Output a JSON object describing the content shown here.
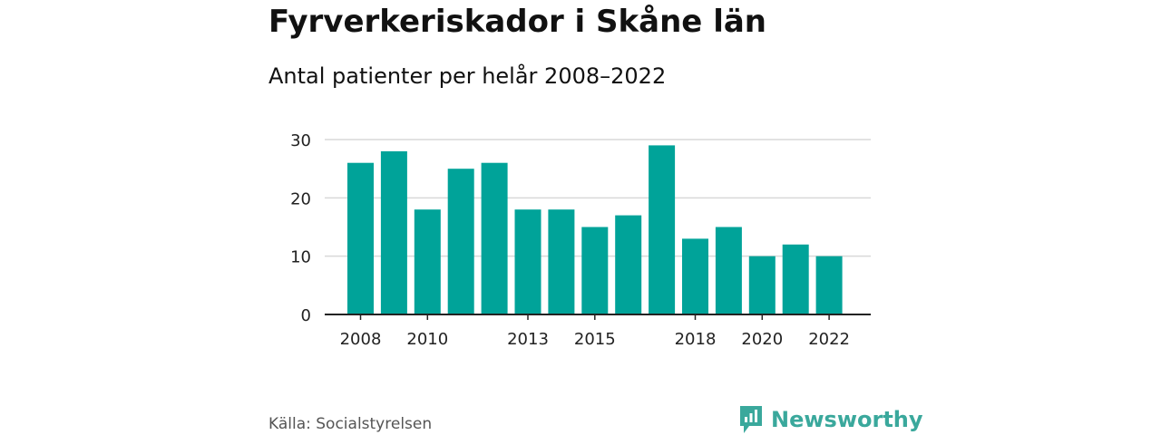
{
  "header": {
    "title": "Fyrverkeriskador i Skåne län",
    "subtitle": "Antal patienter per helår 2008–2022"
  },
  "footer": {
    "source": "Källa: Socialstyrelsen",
    "brand": "Newsworthy",
    "brand_icon": "newsworthy-logo-icon"
  },
  "colors": {
    "bar": "#00a399",
    "brand": "#3aa89c",
    "grid": "#d9d9d9",
    "axis": "#222222"
  },
  "chart_data": {
    "type": "bar",
    "title": "Fyrverkeriskador i Skåne län",
    "subtitle": "Antal patienter per helår 2008–2022",
    "categories": [
      "2008",
      "2009",
      "2010",
      "2011",
      "2012",
      "2013",
      "2014",
      "2015",
      "2016",
      "2017",
      "2018",
      "2019",
      "2020",
      "2021",
      "2022"
    ],
    "values": [
      26,
      28,
      18,
      25,
      26,
      18,
      18,
      15,
      17,
      29,
      13,
      15,
      10,
      12,
      10
    ],
    "x_tick_labels": [
      "2008",
      "2010",
      "2013",
      "2015",
      "2018",
      "2020",
      "2022"
    ],
    "y_ticks": [
      0,
      10,
      20,
      30
    ],
    "ylim": [
      0,
      30
    ],
    "grid": true,
    "legend": "none"
  }
}
